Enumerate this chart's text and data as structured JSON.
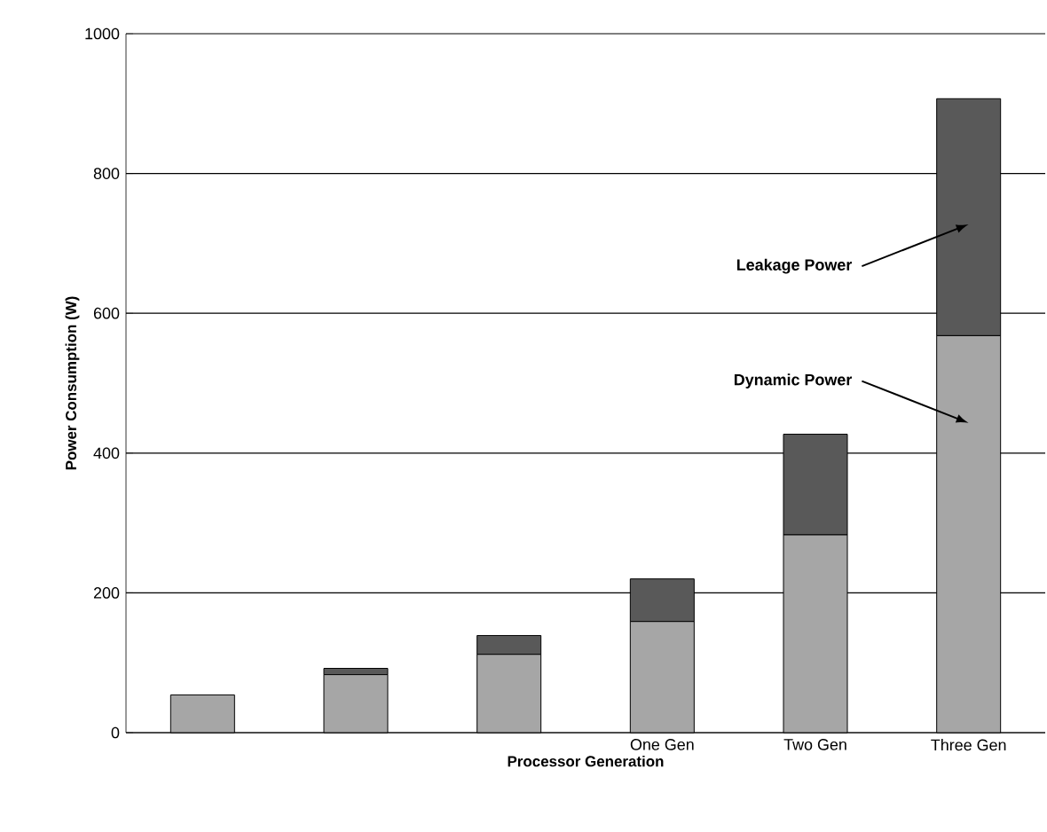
{
  "chart_data": {
    "type": "bar",
    "stacked": true,
    "xlabel": "Processor Generation",
    "ylabel": "Power Consumption (W)",
    "categories": [
      null,
      null,
      null,
      "One Gen",
      "Two Gen",
      "Three Gen"
    ],
    "series": [
      {
        "name": "Dynamic Power",
        "color": "#a6a6a6",
        "values": [
          54,
          83,
          112,
          159,
          283,
          568
        ]
      },
      {
        "name": "Leakage Power",
        "color": "#595959",
        "values": [
          0,
          9,
          27,
          61,
          144,
          339
        ]
      }
    ],
    "ylim": [
      0,
      1000
    ],
    "yticks": [
      0,
      200,
      400,
      600,
      800,
      1000
    ],
    "grid": "y",
    "legend": false
  }
}
